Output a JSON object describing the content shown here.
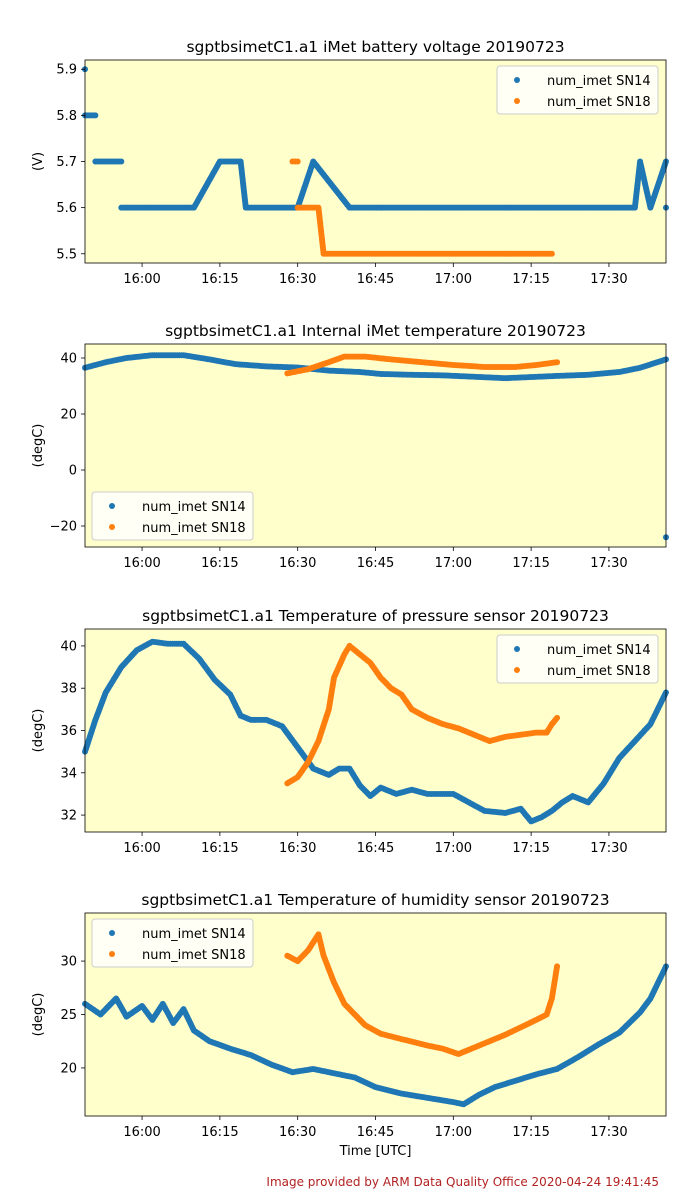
{
  "footer": "Image provided by ARM Data Quality Office 2020-04-24 19:41:45",
  "colors": {
    "sn14": "#1f77b4",
    "sn18": "#ff7f0e",
    "background": "#ffffcc"
  },
  "chart_data": [
    {
      "type": "scatter",
      "title": "sgptbsimetC1.a1 iMet battery voltage 20190723",
      "xlabel": "",
      "ylabel": "(V)",
      "xlim": [
        "15:49",
        "17:41"
      ],
      "ylim": [
        5.48,
        5.92
      ],
      "xticks": [
        "16:00",
        "16:15",
        "16:30",
        "16:45",
        "17:00",
        "17:15",
        "17:30"
      ],
      "yticks": [
        "5.5",
        "5.6",
        "5.7",
        "5.8",
        "5.9"
      ],
      "legend": "top-right",
      "series": [
        {
          "name": "num_imet SN14",
          "color": "#1f77b4",
          "points": [
            [
              "15:49",
              5.9
            ],
            [
              "15:49",
              5.8
            ],
            [
              "15:51",
              5.8
            ],
            [
              "15:51",
              5.7
            ],
            [
              "15:56",
              5.7
            ],
            [
              "15:56",
              5.6
            ],
            [
              "16:03",
              5.6
            ],
            [
              "16:10",
              5.6
            ],
            [
              "16:15",
              5.7
            ],
            [
              "16:17",
              5.7
            ],
            [
              "16:19",
              5.7
            ],
            [
              "16:20",
              5.6
            ],
            [
              "16:30",
              5.6
            ],
            [
              "16:33",
              5.7
            ],
            [
              "16:40",
              5.6
            ],
            [
              "16:50",
              5.6
            ],
            [
              "17:00",
              5.6
            ],
            [
              "17:10",
              5.6
            ],
            [
              "17:20",
              5.6
            ],
            [
              "17:30",
              5.6
            ],
            [
              "17:35",
              5.6
            ],
            [
              "17:36",
              5.7
            ],
            [
              "17:38",
              5.6
            ],
            [
              "17:41",
              5.7
            ],
            [
              "17:41",
              5.6
            ]
          ]
        },
        {
          "name": "num_imet SN18",
          "color": "#ff7f0e",
          "points": [
            [
              "16:29",
              5.7
            ],
            [
              "16:30",
              5.7
            ],
            [
              "16:30",
              5.6
            ],
            [
              "16:32",
              5.6
            ],
            [
              "16:34",
              5.6
            ],
            [
              "16:35",
              5.5
            ],
            [
              "16:45",
              5.5
            ],
            [
              "17:00",
              5.5
            ],
            [
              "17:10",
              5.5
            ],
            [
              "17:19",
              5.5
            ]
          ]
        }
      ]
    },
    {
      "type": "scatter",
      "title": "sgptbsimetC1.a1 Internal iMet temperature 20190723",
      "xlabel": "",
      "ylabel": "(degC)",
      "xlim": [
        "15:49",
        "17:41"
      ],
      "ylim": [
        -27.5,
        45
      ],
      "xticks": [
        "16:00",
        "16:15",
        "16:30",
        "16:45",
        "17:00",
        "17:15",
        "17:30"
      ],
      "yticks": [
        "−20",
        "0",
        "20",
        "40"
      ],
      "legend": "bottom-left",
      "series": [
        {
          "name": "num_imet SN14",
          "color": "#1f77b4",
          "points": [
            [
              "15:49",
              36.5
            ],
            [
              "15:53",
              38.5
            ],
            [
              "15:57",
              40
            ],
            [
              "16:02",
              41
            ],
            [
              "16:08",
              41
            ],
            [
              "16:13",
              39.5
            ],
            [
              "16:18",
              37.8
            ],
            [
              "16:24",
              37
            ],
            [
              "16:30",
              36.6
            ],
            [
              "16:36",
              35.5
            ],
            [
              "16:42",
              35
            ],
            [
              "16:46",
              34.3
            ],
            [
              "16:52",
              34
            ],
            [
              "16:58",
              33.8
            ],
            [
              "17:04",
              33.3
            ],
            [
              "17:10",
              32.8
            ],
            [
              "17:15",
              33.2
            ],
            [
              "17:20",
              33.6
            ],
            [
              "17:26",
              34
            ],
            [
              "17:32",
              35
            ],
            [
              "17:36",
              36.5
            ],
            [
              "17:41",
              39.5
            ],
            [
              "17:41",
              -24
            ]
          ]
        },
        {
          "name": "num_imet SN18",
          "color": "#ff7f0e",
          "points": [
            [
              "16:28",
              34.5
            ],
            [
              "16:32",
              36
            ],
            [
              "16:36",
              38.5
            ],
            [
              "16:39",
              40.5
            ],
            [
              "16:43",
              40.5
            ],
            [
              "16:48",
              39.5
            ],
            [
              "16:54",
              38.5
            ],
            [
              "17:00",
              37.5
            ],
            [
              "17:06",
              36.8
            ],
            [
              "17:12",
              36.8
            ],
            [
              "17:16",
              37.5
            ],
            [
              "17:20",
              38.5
            ]
          ]
        }
      ]
    },
    {
      "type": "scatter",
      "title": "sgptbsimetC1.a1 Temperature of pressure sensor 20190723",
      "xlabel": "",
      "ylabel": "(degC)",
      "xlim": [
        "15:49",
        "17:41"
      ],
      "ylim": [
        31.2,
        40.8
      ],
      "xticks": [
        "16:00",
        "16:15",
        "16:30",
        "16:45",
        "17:00",
        "17:15",
        "17:30"
      ],
      "yticks": [
        "32",
        "34",
        "36",
        "38",
        "40"
      ],
      "legend": "top-right",
      "series": [
        {
          "name": "num_imet SN14",
          "color": "#1f77b4",
          "points": [
            [
              "15:49",
              35
            ],
            [
              "15:51",
              36.5
            ],
            [
              "15:53",
              37.8
            ],
            [
              "15:56",
              39
            ],
            [
              "15:59",
              39.8
            ],
            [
              "16:02",
              40.2
            ],
            [
              "16:05",
              40.1
            ],
            [
              "16:08",
              40.1
            ],
            [
              "16:11",
              39.4
            ],
            [
              "16:14",
              38.4
            ],
            [
              "16:17",
              37.7
            ],
            [
              "16:19",
              36.7
            ],
            [
              "16:21",
              36.5
            ],
            [
              "16:24",
              36.5
            ],
            [
              "16:27",
              36.2
            ],
            [
              "16:30",
              35.2
            ],
            [
              "16:33",
              34.2
            ],
            [
              "16:36",
              33.9
            ],
            [
              "16:38",
              34.2
            ],
            [
              "16:40",
              34.2
            ],
            [
              "16:42",
              33.4
            ],
            [
              "16:44",
              32.9
            ],
            [
              "16:46",
              33.3
            ],
            [
              "16:49",
              33.0
            ],
            [
              "16:52",
              33.2
            ],
            [
              "16:55",
              33.0
            ],
            [
              "17:00",
              33.0
            ],
            [
              "17:03",
              32.6
            ],
            [
              "17:06",
              32.2
            ],
            [
              "17:10",
              32.1
            ],
            [
              "17:13",
              32.3
            ],
            [
              "17:15",
              31.7
            ],
            [
              "17:17",
              31.9
            ],
            [
              "17:19",
              32.2
            ],
            [
              "17:21",
              32.6
            ],
            [
              "17:23",
              32.9
            ],
            [
              "17:26",
              32.6
            ],
            [
              "17:29",
              33.5
            ],
            [
              "17:32",
              34.7
            ],
            [
              "17:35",
              35.5
            ],
            [
              "17:38",
              36.3
            ],
            [
              "17:41",
              37.8
            ]
          ]
        },
        {
          "name": "num_imet SN18",
          "color": "#ff7f0e",
          "points": [
            [
              "16:28",
              33.5
            ],
            [
              "16:30",
              33.8
            ],
            [
              "16:32",
              34.5
            ],
            [
              "16:34",
              35.5
            ],
            [
              "16:36",
              37.0
            ],
            [
              "16:37",
              38.5
            ],
            [
              "16:39",
              39.6
            ],
            [
              "16:40",
              40.0
            ],
            [
              "16:42",
              39.6
            ],
            [
              "16:44",
              39.2
            ],
            [
              "16:46",
              38.5
            ],
            [
              "16:48",
              38.0
            ],
            [
              "16:50",
              37.7
            ],
            [
              "16:52",
              37.0
            ],
            [
              "16:55",
              36.6
            ],
            [
              "16:58",
              36.3
            ],
            [
              "17:01",
              36.1
            ],
            [
              "17:04",
              35.8
            ],
            [
              "17:07",
              35.5
            ],
            [
              "17:10",
              35.7
            ],
            [
              "17:13",
              35.8
            ],
            [
              "17:16",
              35.9
            ],
            [
              "17:18",
              35.9
            ],
            [
              "17:19",
              36.3
            ],
            [
              "17:20",
              36.6
            ]
          ]
        }
      ]
    },
    {
      "type": "scatter",
      "title": "sgptbsimetC1.a1 Temperature of humidity sensor 20190723",
      "xlabel": "Time [UTC]",
      "ylabel": "(degC)",
      "xlim": [
        "15:49",
        "17:41"
      ],
      "ylim": [
        15.5,
        34.5
      ],
      "xticks": [
        "16:00",
        "16:15",
        "16:30",
        "16:45",
        "17:00",
        "17:15",
        "17:30"
      ],
      "yticks": [
        "20",
        "25",
        "30"
      ],
      "legend": "top-left",
      "series": [
        {
          "name": "num_imet SN14",
          "color": "#1f77b4",
          "points": [
            [
              "15:49",
              26
            ],
            [
              "15:52",
              25
            ],
            [
              "15:55",
              26.5
            ],
            [
              "15:57",
              24.8
            ],
            [
              "16:00",
              25.8
            ],
            [
              "16:02",
              24.5
            ],
            [
              "16:04",
              26
            ],
            [
              "16:06",
              24.2
            ],
            [
              "16:08",
              25.5
            ],
            [
              "16:10",
              23.5
            ],
            [
              "16:13",
              22.5
            ],
            [
              "16:17",
              21.8
            ],
            [
              "16:21",
              21.2
            ],
            [
              "16:25",
              20.3
            ],
            [
              "16:29",
              19.6
            ],
            [
              "16:33",
              19.9
            ],
            [
              "16:37",
              19.5
            ],
            [
              "16:41",
              19.1
            ],
            [
              "16:45",
              18.2
            ],
            [
              "16:50",
              17.6
            ],
            [
              "16:55",
              17.2
            ],
            [
              "17:00",
              16.8
            ],
            [
              "17:02",
              16.6
            ],
            [
              "17:05",
              17.5
            ],
            [
              "17:08",
              18.2
            ],
            [
              "17:12",
              18.8
            ],
            [
              "17:16",
              19.4
            ],
            [
              "17:20",
              19.9
            ],
            [
              "17:24",
              21.0
            ],
            [
              "17:28",
              22.2
            ],
            [
              "17:32",
              23.3
            ],
            [
              "17:36",
              25.2
            ],
            [
              "17:38",
              26.5
            ],
            [
              "17:40",
              28.5
            ],
            [
              "17:41",
              29.5
            ]
          ]
        },
        {
          "name": "num_imet SN18",
          "color": "#ff7f0e",
          "points": [
            [
              "16:28",
              30.5
            ],
            [
              "16:30",
              30.0
            ],
            [
              "16:32",
              31.0
            ],
            [
              "16:34",
              32.5
            ],
            [
              "16:35",
              30.5
            ],
            [
              "16:37",
              28.0
            ],
            [
              "16:39",
              26.0
            ],
            [
              "16:41",
              25.0
            ],
            [
              "16:43",
              24.0
            ],
            [
              "16:46",
              23.2
            ],
            [
              "16:50",
              22.7
            ],
            [
              "16:55",
              22.1
            ],
            [
              "16:58",
              21.8
            ],
            [
              "17:01",
              21.3
            ],
            [
              "17:04",
              21.9
            ],
            [
              "17:07",
              22.5
            ],
            [
              "17:10",
              23.1
            ],
            [
              "17:13",
              23.8
            ],
            [
              "17:16",
              24.5
            ],
            [
              "17:18",
              25.0
            ],
            [
              "17:19",
              26.5
            ],
            [
              "17:20",
              29.5
            ]
          ]
        }
      ]
    }
  ]
}
